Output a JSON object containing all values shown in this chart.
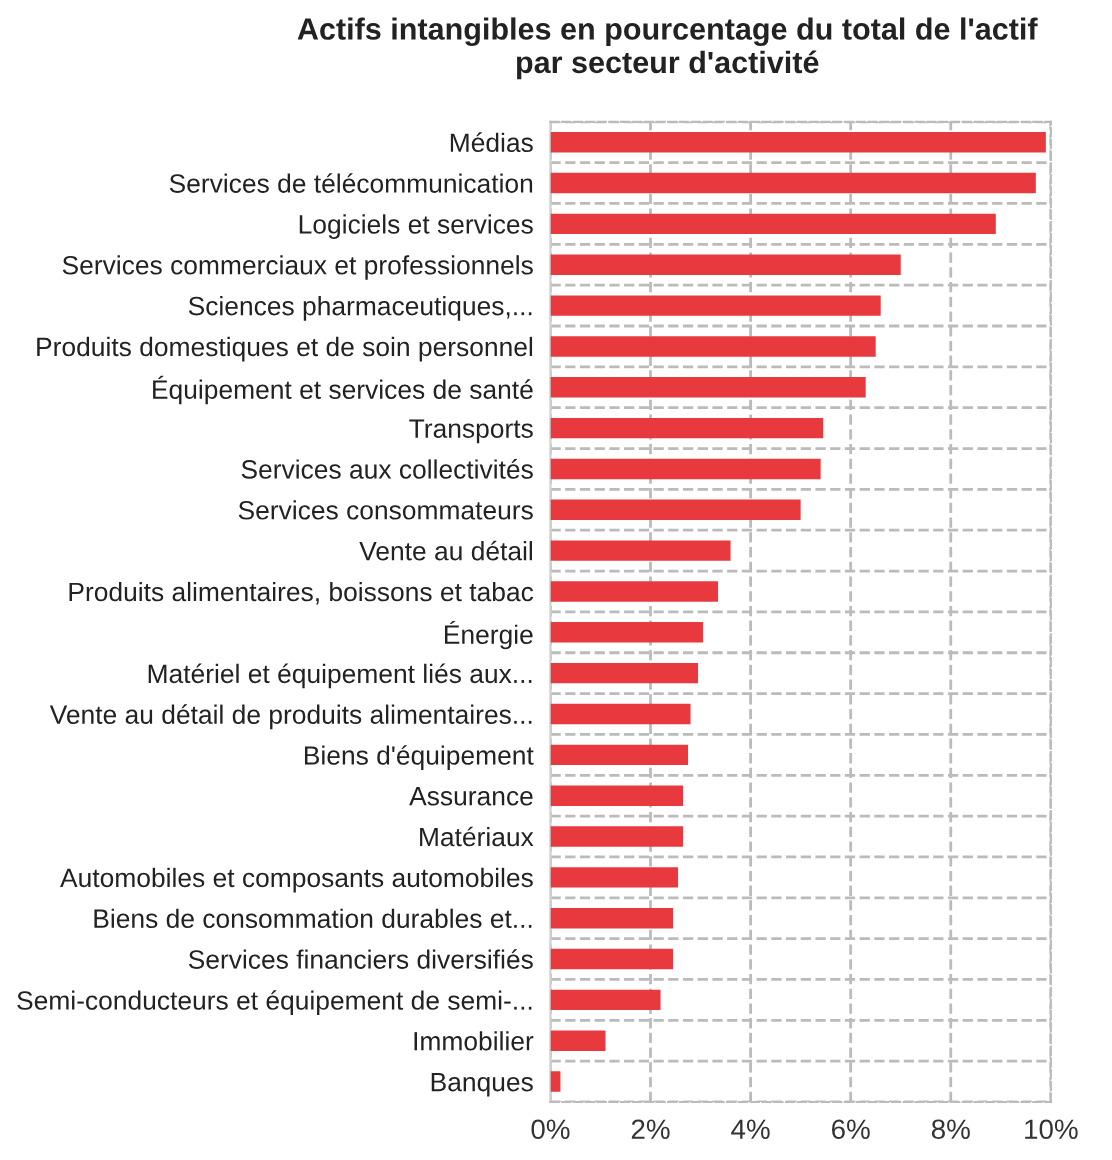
{
  "chart_data": {
    "type": "bar",
    "orientation": "horizontal",
    "title": "Actifs intangibles en pourcentage du total de l'actif\npar secteur d'activité",
    "categories": [
      "Médias",
      "Services de télécommunication",
      "Logiciels et services",
      "Services commerciaux et professionnels",
      "Sciences pharmaceutiques,...",
      "Produits domestiques et de soin personnel",
      "Équipement et services de santé",
      "Transports",
      "Services aux collectivités",
      "Services consommateurs",
      "Vente au détail",
      "Produits alimentaires, boissons et tabac",
      "Énergie",
      "Matériel et équipement liés aux...",
      "Vente au détail de produits alimentaires...",
      "Biens d'équipement",
      "Assurance",
      "Matériaux",
      "Automobiles et composants automobiles",
      "Biens de consommation durables et...",
      "Services financiers diversifiés",
      "Semi-conducteurs et équipement de semi-...",
      "Immobilier",
      "Banques"
    ],
    "values": [
      9.9,
      9.7,
      8.9,
      7.0,
      6.6,
      6.5,
      6.3,
      5.45,
      5.4,
      5.0,
      3.6,
      3.35,
      3.05,
      2.95,
      2.8,
      2.75,
      2.65,
      2.65,
      2.55,
      2.45,
      2.45,
      2.2,
      1.1,
      0.2
    ],
    "color": "#e8393f",
    "xlim": [
      0,
      10
    ],
    "xticks": [
      {
        "value": 0,
        "label": "0%"
      },
      {
        "value": 2,
        "label": "2%"
      },
      {
        "value": 4,
        "label": "4%"
      },
      {
        "value": 6,
        "label": "6%"
      },
      {
        "value": 8,
        "label": "8%"
      },
      {
        "value": 10,
        "label": "10%"
      }
    ],
    "grid": true
  }
}
